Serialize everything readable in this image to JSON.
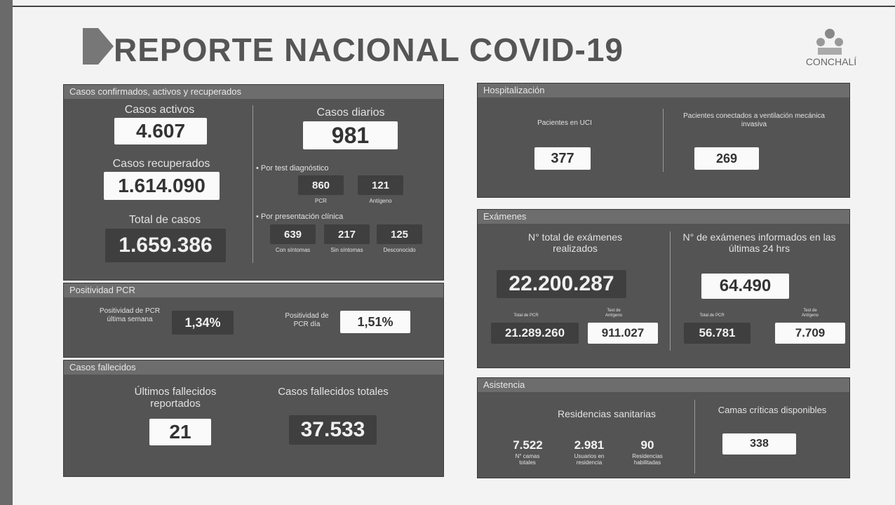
{
  "header": {
    "title": "REPORTE NACIONAL COVID-19",
    "logo": "CONCHALÍ"
  },
  "casos": {
    "title": "Casos confirmados, activos y recuperados",
    "activos": {
      "label": "Casos activos",
      "value": "4.607"
    },
    "recuperados": {
      "label": "Casos recuperados",
      "value": "1.614.090"
    },
    "total": {
      "label": "Total de casos",
      "value": "1.659.386"
    },
    "diarios": {
      "label": "Casos diarios",
      "value": "981"
    },
    "test": {
      "label": "• Por test diagnóstico",
      "items": [
        {
          "value": "860",
          "label": "PCR"
        },
        {
          "value": "121",
          "label": "Antígeno"
        }
      ]
    },
    "clinica": {
      "label": "• Por presentación clínica",
      "items": [
        {
          "value": "639",
          "label": "Con síntomas"
        },
        {
          "value": "217",
          "label": "Sin síntomas"
        },
        {
          "value": "125",
          "label": "Desconocido"
        }
      ]
    }
  },
  "positividad": {
    "title": "Positividad PCR",
    "semana": {
      "label": "Positividad de PCR última semana",
      "value": "1,34%"
    },
    "dia": {
      "label": "Positividad de PCR día",
      "value": "1,51%"
    }
  },
  "fallecidos": {
    "title": "Casos fallecidos",
    "ultimos": {
      "label": "Últimos fallecidos reportados",
      "value": "21"
    },
    "totales": {
      "label": "Casos fallecidos totales",
      "value": "37.533"
    }
  },
  "hospitalizacion": {
    "title": "Hospitalización",
    "uci": {
      "label": "Pacientes en UCI",
      "value": "377"
    },
    "ventilacion": {
      "label": "Pacientes conectados a ventilación mecánica invasiva",
      "value": "269"
    }
  },
  "examenes": {
    "title": "Exámenes",
    "total": {
      "label": "N° total de exámenes realizados",
      "value": "22.200.287",
      "pcr_label": "Total de PCR",
      "pcr": "21.289.260",
      "antigeno_label": "Test de Antígeno",
      "antigeno": "911.027"
    },
    "ultimas": {
      "label": "N° de exámenes informados en las últimas 24 hrs",
      "value": "64.490",
      "pcr_label": "Total de PCR",
      "pcr": "56.781",
      "antigeno_label": "Test de Antígeno",
      "antigeno": "7.709"
    }
  },
  "asistencia": {
    "title": "Asistencia",
    "residencias": {
      "label": "Residencias sanitarias",
      "items": [
        {
          "value": "7.522",
          "label": "N° camas totales"
        },
        {
          "value": "2.981",
          "label": "Usuarios en residencia"
        },
        {
          "value": "90",
          "label": "Residencias habilitadas"
        }
      ]
    },
    "camas": {
      "label": "Camas críticas disponibles",
      "value": "338"
    }
  }
}
